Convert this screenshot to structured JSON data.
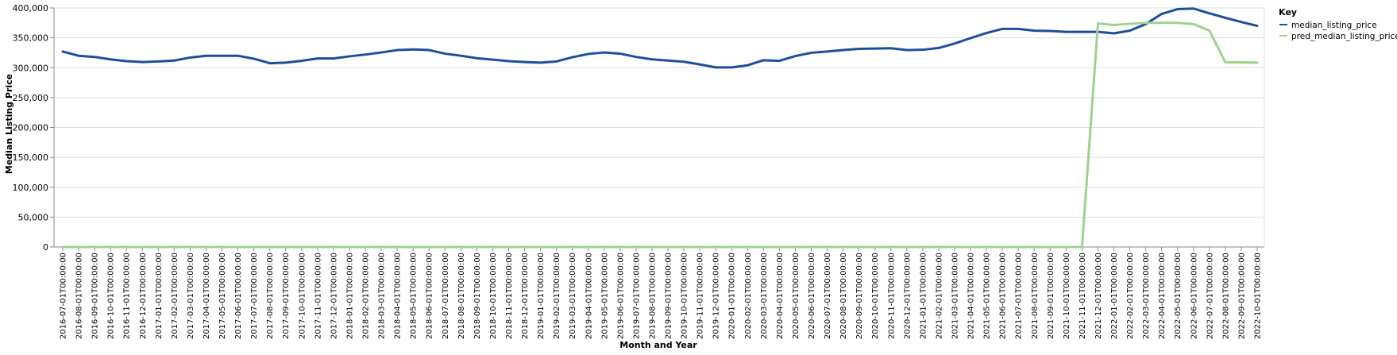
{
  "chart_data": {
    "type": "line",
    "title": "",
    "xlabel": "Month and Year",
    "ylabel": "Median Listing Price",
    "ylim": [
      0,
      400000
    ],
    "y_ticks": [
      "0",
      "50,000",
      "100,000",
      "150,000",
      "200,000",
      "250,000",
      "300,000",
      "350,000",
      "400,000"
    ],
    "grid": "horizontal",
    "legend_title": "Key",
    "legend_position": "right",
    "x": [
      "2016-07-01T00:00:00",
      "2016-08-01T00:00:00",
      "2016-09-01T00:00:00",
      "2016-10-01T00:00:00",
      "2016-11-01T00:00:00",
      "2016-12-01T00:00:00",
      "2017-01-01T00:00:00",
      "2017-02-01T00:00:00",
      "2017-03-01T00:00:00",
      "2017-04-01T00:00:00",
      "2017-05-01T00:00:00",
      "2017-06-01T00:00:00",
      "2017-07-01T00:00:00",
      "2017-08-01T00:00:00",
      "2017-09-01T00:00:00",
      "2017-10-01T00:00:00",
      "2017-11-01T00:00:00",
      "2017-12-01T00:00:00",
      "2018-01-01T00:00:00",
      "2018-02-01T00:00:00",
      "2018-03-01T00:00:00",
      "2018-04-01T00:00:00",
      "2018-05-01T00:00:00",
      "2018-06-01T00:00:00",
      "2018-07-01T00:00:00",
      "2018-08-01T00:00:00",
      "2018-09-01T00:00:00",
      "2018-10-01T00:00:00",
      "2018-11-01T00:00:00",
      "2018-12-01T00:00:00",
      "2019-01-01T00:00:00",
      "2019-02-01T00:00:00",
      "2019-03-01T00:00:00",
      "2019-04-01T00:00:00",
      "2019-05-01T00:00:00",
      "2019-06-01T00:00:00",
      "2019-07-01T00:00:00",
      "2019-08-01T00:00:00",
      "2019-09-01T00:00:00",
      "2019-10-01T00:00:00",
      "2019-11-01T00:00:00",
      "2019-12-01T00:00:00",
      "2020-01-01T00:00:00",
      "2020-02-01T00:00:00",
      "2020-03-01T00:00:00",
      "2020-04-01T00:00:00",
      "2020-05-01T00:00:00",
      "2020-06-01T00:00:00",
      "2020-07-01T00:00:00",
      "2020-08-01T00:00:00",
      "2020-09-01T00:00:00",
      "2020-10-01T00:00:00",
      "2020-11-01T00:00:00",
      "2020-12-01T00:00:00",
      "2021-01-01T00:00:00",
      "2021-02-01T00:00:00",
      "2021-03-01T00:00:00",
      "2021-04-01T00:00:00",
      "2021-05-01T00:00:00",
      "2021-06-01T00:00:00",
      "2021-07-01T00:00:00",
      "2021-08-01T00:00:00",
      "2021-09-01T00:00:00",
      "2021-10-01T00:00:00",
      "2021-11-01T00:00:00",
      "2021-12-01T00:00:00",
      "2022-01-01T00:00:00",
      "2022-02-01T00:00:00",
      "2022-03-01T00:00:00",
      "2022-04-01T00:00:00",
      "2022-05-01T00:00:00",
      "2022-06-01T00:00:00",
      "2022-07-01T00:00:00",
      "2022-08-01T00:00:00",
      "2022-09-01T00:00:00",
      "2022-10-01T00:00:00"
    ],
    "series": [
      {
        "name": "median_listing_price",
        "color": "#1f4e99",
        "values": [
          327000,
          320000,
          318000,
          314000,
          311000,
          309500,
          310500,
          312000,
          317000,
          320000,
          320000,
          320000,
          315000,
          307500,
          308500,
          311500,
          315500,
          315500,
          319000,
          322000,
          325500,
          329500,
          330500,
          329500,
          323500,
          320000,
          316000,
          313500,
          311000,
          309500,
          308500,
          310500,
          317500,
          323000,
          325500,
          323500,
          318000,
          314000,
          312000,
          310000,
          305500,
          300500,
          300500,
          304000,
          312500,
          311500,
          319500,
          325000,
          327000,
          329500,
          331500,
          332000,
          332500,
          329500,
          330000,
          333000,
          340500,
          349500,
          358000,
          365000,
          365000,
          362000,
          361500,
          360000,
          360000,
          360000,
          357500,
          362000,
          373000,
          390000,
          398000,
          399000,
          391000,
          383500,
          376500,
          370000
        ]
      },
      {
        "name": "pred_median_listing_price",
        "color": "#9ed28f",
        "values": [
          0,
          0,
          0,
          0,
          0,
          0,
          0,
          0,
          0,
          0,
          0,
          0,
          0,
          0,
          0,
          0,
          0,
          0,
          0,
          0,
          0,
          0,
          0,
          0,
          0,
          0,
          0,
          0,
          0,
          0,
          0,
          0,
          0,
          0,
          0,
          0,
          0,
          0,
          0,
          0,
          0,
          0,
          0,
          0,
          0,
          0,
          0,
          0,
          0,
          0,
          0,
          0,
          0,
          0,
          0,
          0,
          0,
          0,
          0,
          0,
          0,
          0,
          0,
          0,
          0,
          374000,
          371500,
          373500,
          375000,
          375000,
          375000,
          373000,
          362000,
          309000,
          309000,
          308500
        ]
      }
    ]
  }
}
